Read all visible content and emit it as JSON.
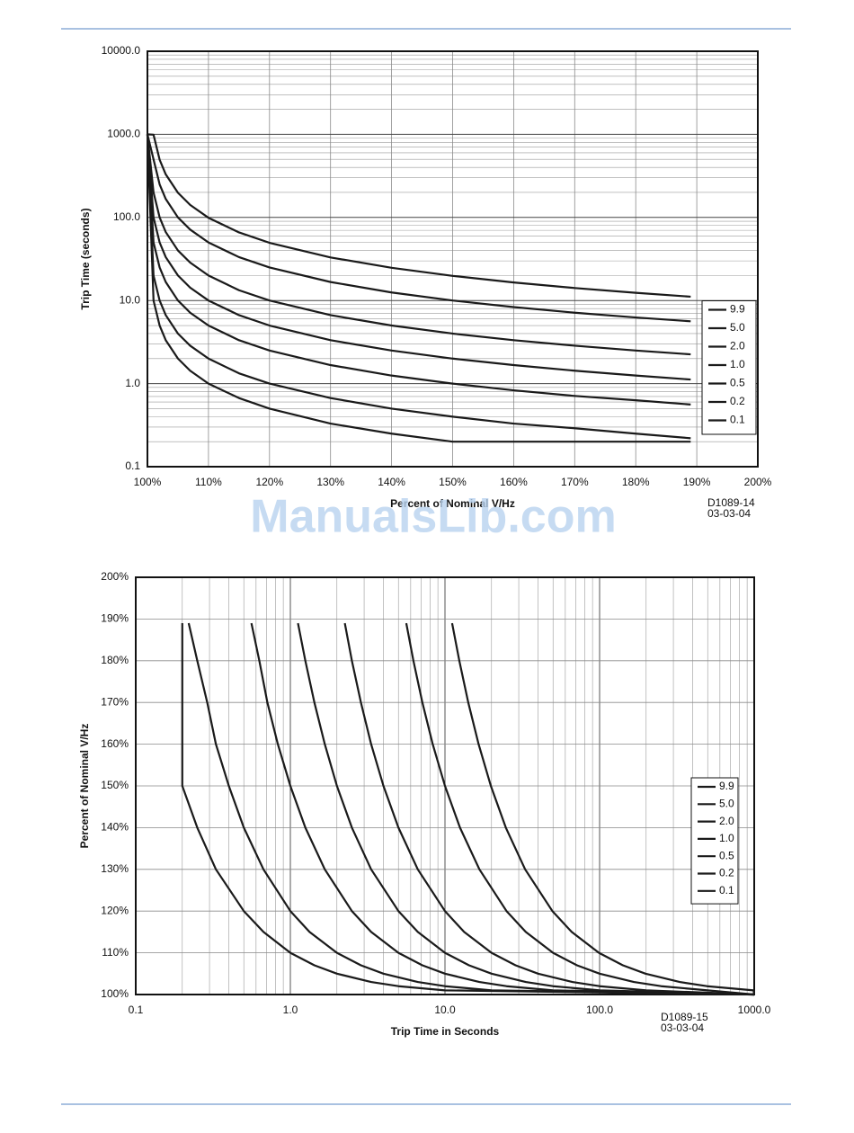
{
  "watermark": "ManualsLib.com",
  "chart_data": [
    {
      "type": "line",
      "yscale": "log",
      "grid": true,
      "legend": "lower right",
      "ylabel": "Trip Time (seconds)",
      "xlabel": "Percent of Nominal V/Hz",
      "notes": [
        "D1089-14",
        "03-03-04"
      ],
      "xlim": [
        100,
        200
      ],
      "xticks": [
        {
          "value": 100,
          "label": "100%"
        },
        {
          "value": 110,
          "label": "110%"
        },
        {
          "value": 120,
          "label": "120%"
        },
        {
          "value": 130,
          "label": "130%"
        },
        {
          "value": 140,
          "label": "140%"
        },
        {
          "value": 150,
          "label": "150%"
        },
        {
          "value": 160,
          "label": "160%"
        },
        {
          "value": 170,
          "label": "170%"
        },
        {
          "value": 180,
          "label": "180%"
        },
        {
          "value": 190,
          "label": "190%"
        },
        {
          "value": 200,
          "label": "200%"
        }
      ],
      "ylim": [
        0.1,
        10000
      ],
      "yticks": [
        0.1,
        {
          "value": 1,
          "label": "1.0"
        },
        {
          "value": 10,
          "label": "10.0"
        },
        {
          "value": 100,
          "label": "100.0"
        },
        {
          "value": 1000,
          "label": "1000.0"
        },
        {
          "value": 10000,
          "label": "10000.0"
        }
      ],
      "x": [
        100,
        101,
        102,
        103,
        105,
        107,
        110,
        115,
        120,
        130,
        140,
        150,
        160,
        170,
        180,
        189
      ],
      "series": [
        {
          "name": "9.9",
          "color": "#1a1a1a",
          "values": [
            1000,
            990,
            495,
            330,
            198,
            141.4,
            99,
            66,
            49.5,
            33,
            24.75,
            19.8,
            16.5,
            14.14,
            12.38,
            11.12
          ]
        },
        {
          "name": "5.0",
          "color": "#1a1a1a",
          "values": [
            1000,
            500,
            250,
            166.7,
            100,
            71.4,
            50,
            33.3,
            25,
            16.7,
            12.5,
            10,
            8.33,
            7.14,
            6.25,
            5.62
          ]
        },
        {
          "name": "2.0",
          "color": "#1a1a1a",
          "values": [
            1000,
            200,
            100,
            66.7,
            40,
            28.6,
            20,
            13.3,
            10,
            6.67,
            5,
            4,
            3.33,
            2.86,
            2.5,
            2.25
          ]
        },
        {
          "name": "1.0",
          "color": "#1a1a1a",
          "values": [
            1000,
            100,
            50,
            33.3,
            20,
            14.3,
            10,
            6.67,
            5,
            3.33,
            2.5,
            2,
            1.67,
            1.43,
            1.25,
            1.12
          ]
        },
        {
          "name": "0.5",
          "color": "#1a1a1a",
          "values": [
            1000,
            50,
            25,
            16.7,
            10,
            7.14,
            5,
            3.33,
            2.5,
            1.67,
            1.25,
            1,
            0.83,
            0.71,
            0.63,
            0.56
          ]
        },
        {
          "name": "0.2",
          "color": "#1a1a1a",
          "values": [
            1000,
            20,
            10,
            6.67,
            4,
            2.86,
            2,
            1.33,
            1,
            0.67,
            0.5,
            0.4,
            0.33,
            0.29,
            0.25,
            0.22
          ]
        },
        {
          "name": "0.1",
          "color": "#1a1a1a",
          "values": [
            1000,
            10,
            5,
            3.33,
            2,
            1.43,
            1,
            0.67,
            0.5,
            0.33,
            0.25,
            0.2,
            0.2,
            0.2,
            0.2,
            0.2
          ]
        }
      ]
    },
    {
      "type": "line",
      "xscale": "log",
      "grid": true,
      "legend": "center right",
      "ylabel": "Percent of Nominal V/Hz",
      "xlabel": "Trip Time in Seconds",
      "notes": [
        "D1089-15",
        "03-03-04"
      ],
      "xlim": [
        0.1,
        1000
      ],
      "xticks": [
        0.1,
        {
          "value": 1,
          "label": "1.0"
        },
        {
          "value": 10,
          "label": "10.0"
        },
        {
          "value": 100,
          "label": "100.0"
        },
        {
          "value": 1000,
          "label": "1000.0"
        }
      ],
      "ylim": [
        100,
        200
      ],
      "yticks": [
        {
          "value": 100,
          "label": "100%"
        },
        {
          "value": 110,
          "label": "110%"
        },
        {
          "value": 120,
          "label": "120%"
        },
        {
          "value": 130,
          "label": "130%"
        },
        {
          "value": 140,
          "label": "140%"
        },
        {
          "value": 150,
          "label": "150%"
        },
        {
          "value": 160,
          "label": "160%"
        },
        {
          "value": 170,
          "label": "170%"
        },
        {
          "value": 180,
          "label": "180%"
        },
        {
          "value": 190,
          "label": "190%"
        },
        {
          "value": 200,
          "label": "200%"
        }
      ],
      "series": [
        {
          "name": "9.9",
          "color": "#1a1a1a",
          "x": [
            1000,
            990,
            495,
            330,
            198,
            141.4,
            99,
            66,
            49.5,
            33,
            24.75,
            19.8,
            16.5,
            14.14,
            12.38,
            11.12
          ],
          "values": [
            100,
            101,
            102,
            103,
            105,
            107,
            110,
            115,
            120,
            130,
            140,
            150,
            160,
            170,
            180,
            189
          ]
        },
        {
          "name": "5.0",
          "color": "#1a1a1a",
          "x": [
            1000,
            500,
            250,
            166.7,
            100,
            71.4,
            50,
            33.3,
            25,
            16.7,
            12.5,
            10,
            8.33,
            7.14,
            6.25,
            5.62
          ],
          "values": [
            100,
            101,
            102,
            103,
            105,
            107,
            110,
            115,
            120,
            130,
            140,
            150,
            160,
            170,
            180,
            189
          ]
        },
        {
          "name": "2.0",
          "color": "#1a1a1a",
          "x": [
            1000,
            200,
            100,
            66.7,
            40,
            28.6,
            20,
            13.3,
            10,
            6.67,
            5,
            4,
            3.33,
            2.86,
            2.5,
            2.25
          ],
          "values": [
            100,
            101,
            102,
            103,
            105,
            107,
            110,
            115,
            120,
            130,
            140,
            150,
            160,
            170,
            180,
            189
          ]
        },
        {
          "name": "1.0",
          "color": "#1a1a1a",
          "x": [
            1000,
            100,
            50,
            33.3,
            20,
            14.3,
            10,
            6.67,
            5,
            3.33,
            2.5,
            2,
            1.67,
            1.43,
            1.25,
            1.12
          ],
          "values": [
            100,
            101,
            102,
            103,
            105,
            107,
            110,
            115,
            120,
            130,
            140,
            150,
            160,
            170,
            180,
            189
          ]
        },
        {
          "name": "0.5",
          "color": "#1a1a1a",
          "x": [
            1000,
            50,
            25,
            16.7,
            10,
            7.14,
            5,
            3.33,
            2.5,
            1.67,
            1.25,
            1,
            0.83,
            0.71,
            0.63,
            0.56
          ],
          "values": [
            100,
            101,
            102,
            103,
            105,
            107,
            110,
            115,
            120,
            130,
            140,
            150,
            160,
            170,
            180,
            189
          ]
        },
        {
          "name": "0.2",
          "color": "#1a1a1a",
          "x": [
            1000,
            20,
            10,
            6.67,
            4,
            2.86,
            2,
            1.33,
            1,
            0.67,
            0.5,
            0.4,
            0.33,
            0.29,
            0.25,
            0.22
          ],
          "values": [
            100,
            101,
            102,
            103,
            105,
            107,
            110,
            115,
            120,
            130,
            140,
            150,
            160,
            170,
            180,
            189
          ]
        },
        {
          "name": "0.1",
          "color": "#1a1a1a",
          "x": [
            1000,
            10,
            5,
            3.33,
            2,
            1.43,
            1,
            0.67,
            0.5,
            0.33,
            0.25,
            0.2,
            0.2,
            0.2,
            0.2,
            0.2
          ],
          "values": [
            100,
            101,
            102,
            103,
            105,
            107,
            110,
            115,
            120,
            130,
            140,
            150,
            160,
            170,
            180,
            189
          ]
        }
      ]
    }
  ]
}
